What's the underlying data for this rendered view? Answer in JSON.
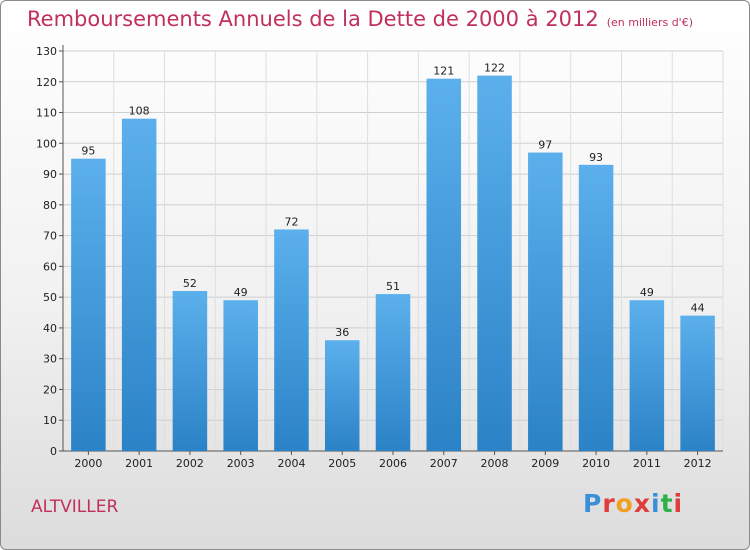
{
  "header": {
    "title": "Remboursements Annuels de la Dette de 2000 à 2012",
    "unit": "(en milliers d'€)"
  },
  "footer": {
    "city": "ALTVILLER",
    "logo_text": "Proxiti",
    "logo_colors": [
      "#3a8fd8",
      "#e03c3c",
      "#f0a020",
      "#e03c3c",
      "#3a8fd8",
      "#2eb04a",
      "#e03c3c"
    ]
  },
  "colors": {
    "bar": "#3f9be0",
    "bar_light": "#5bb0ec",
    "bar_dark": "#2b82c6",
    "title": "#c0305a"
  },
  "chart_data": {
    "type": "bar",
    "categories": [
      "2000",
      "2001",
      "2002",
      "2003",
      "2004",
      "2005",
      "2006",
      "2007",
      "2008",
      "2009",
      "2010",
      "2011",
      "2012"
    ],
    "values": [
      95,
      108,
      52,
      49,
      72,
      36,
      51,
      121,
      122,
      97,
      93,
      49,
      44
    ],
    "title": "Remboursements Annuels de la Dette de 2000 à 2012",
    "xlabel": "",
    "ylabel": "",
    "ylim": [
      0,
      130
    ],
    "yticks": [
      0,
      10,
      20,
      30,
      40,
      50,
      60,
      70,
      80,
      90,
      100,
      110,
      120,
      130
    ],
    "grid": true,
    "data_labels": true
  }
}
